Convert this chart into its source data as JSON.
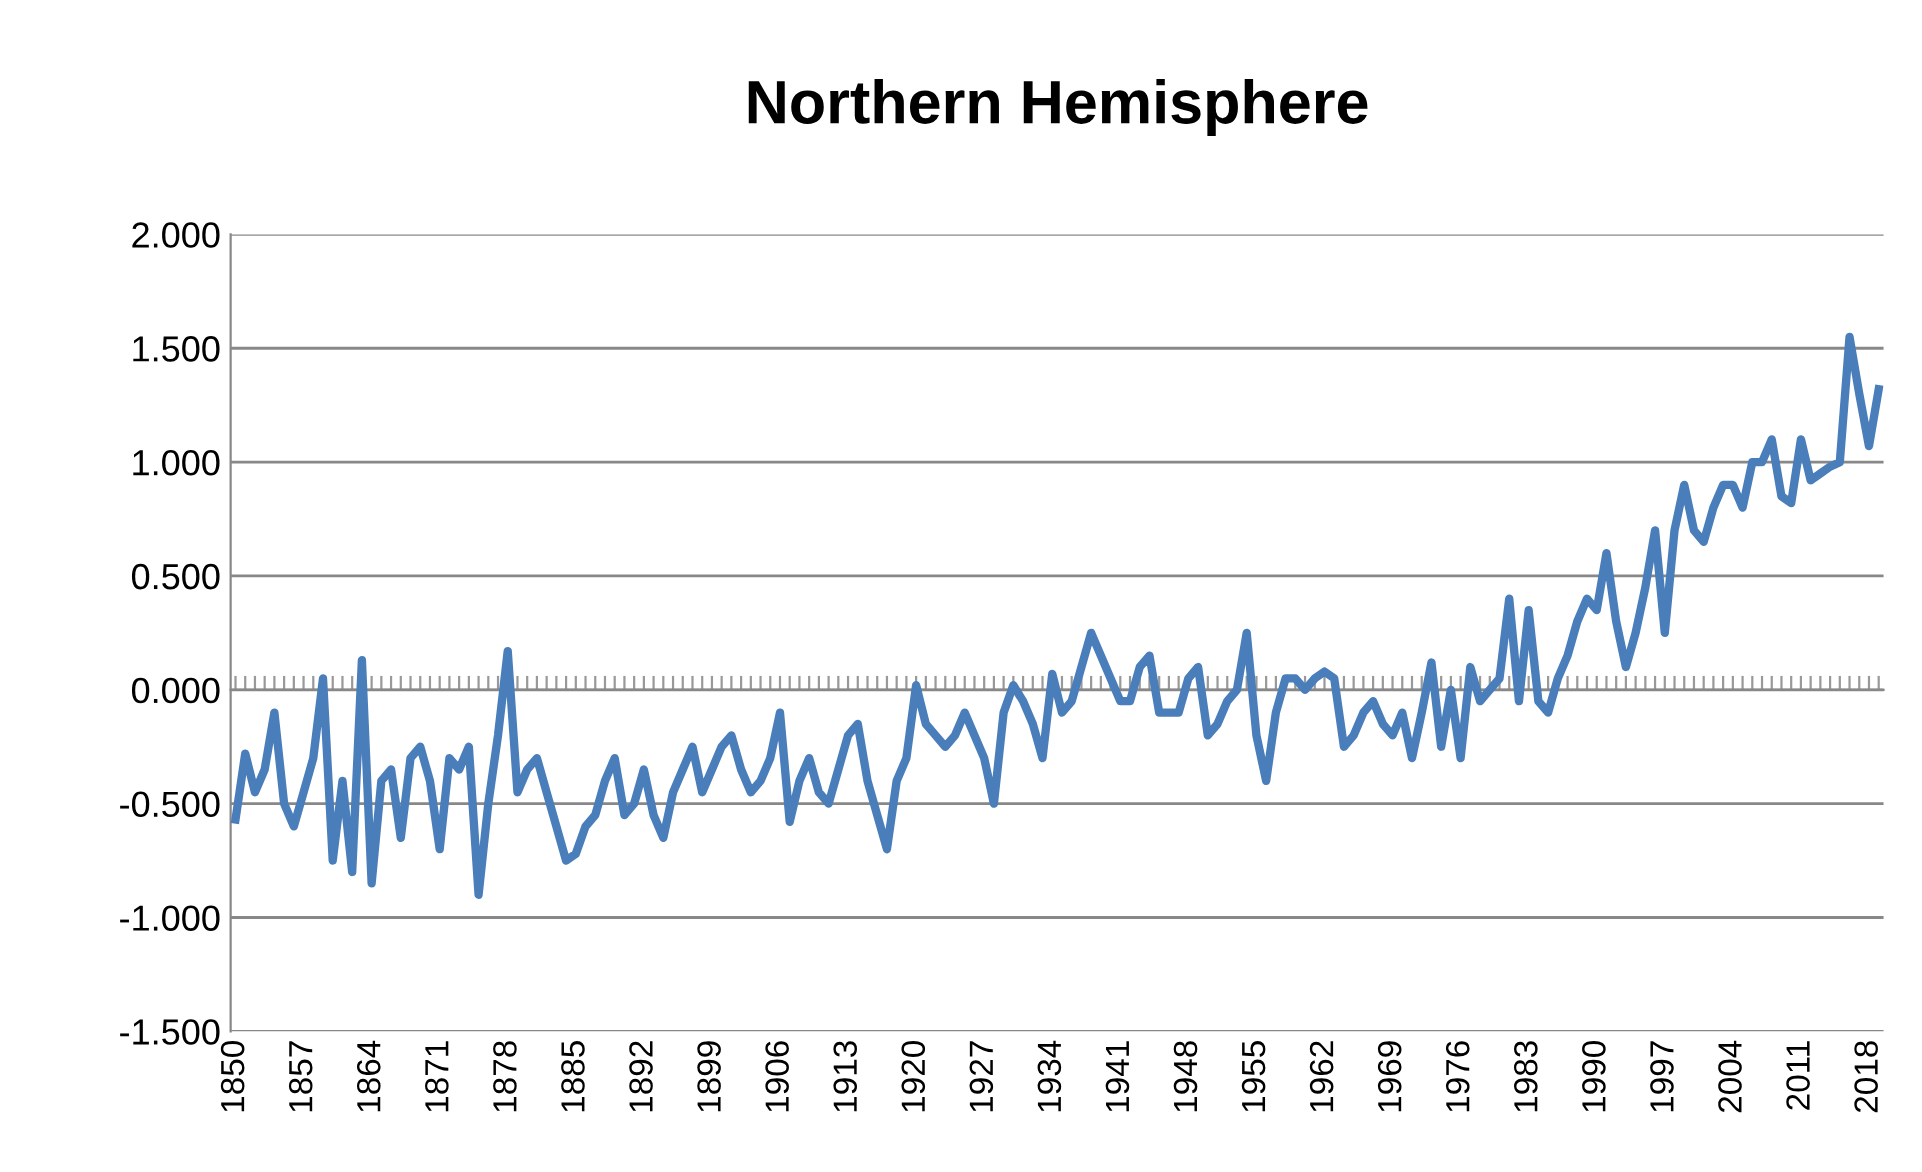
{
  "chart_data": {
    "type": "line",
    "title": "Northern Hemisphere",
    "categories": [
      "1850",
      null,
      null,
      null,
      null,
      null,
      null,
      "1857",
      null,
      null,
      null,
      null,
      null,
      null,
      "1864",
      null,
      null,
      null,
      null,
      null,
      null,
      "1871",
      null,
      null,
      null,
      null,
      null,
      null,
      "1878",
      null,
      null,
      null,
      null,
      null,
      null,
      "1885",
      null,
      null,
      null,
      null,
      null,
      null,
      "1892",
      null,
      null,
      null,
      null,
      null,
      null,
      "1899",
      null,
      null,
      null,
      null,
      null,
      null,
      "1906",
      null,
      null,
      null,
      null,
      null,
      null,
      "1913",
      null,
      null,
      null,
      null,
      null,
      null,
      "1920",
      null,
      null,
      null,
      null,
      null,
      null,
      "1927",
      null,
      null,
      null,
      null,
      null,
      null,
      "1934",
      null,
      null,
      null,
      null,
      null,
      null,
      "1941",
      null,
      null,
      null,
      null,
      null,
      null,
      "1948",
      null,
      null,
      null,
      null,
      null,
      null,
      "1955",
      null,
      null,
      null,
      null,
      null,
      null,
      "1962",
      null,
      null,
      null,
      null,
      null,
      null,
      "1969",
      null,
      null,
      null,
      null,
      null,
      null,
      "1976",
      null,
      null,
      null,
      null,
      null,
      null,
      "1983",
      null,
      null,
      null,
      null,
      null,
      null,
      "1990",
      null,
      null,
      null,
      null,
      null,
      null,
      "1997",
      null,
      null,
      null,
      null,
      null,
      null,
      "2004",
      null,
      null,
      null,
      null,
      null,
      null,
      "2011",
      null,
      null,
      null,
      null,
      null,
      null,
      "2018",
      null
    ],
    "series": [
      {
        "color": "#4a7ebb",
        "values": [
          -0.57,
          -0.28,
          -0.45,
          -0.35,
          -0.1,
          -0.5,
          -0.6,
          -0.45,
          -0.3,
          0.05,
          -0.75,
          -0.4,
          -0.8,
          0.13,
          -0.85,
          -0.4,
          -0.35,
          -0.65,
          -0.3,
          -0.25,
          -0.4,
          -0.7,
          -0.3,
          -0.35,
          -0.25,
          -0.9,
          -0.5,
          -0.2,
          0.17,
          -0.45,
          -0.35,
          -0.3,
          -0.45,
          -0.6,
          -0.75,
          -0.72,
          -0.6,
          -0.55,
          -0.4,
          -0.3,
          -0.55,
          -0.5,
          -0.35,
          -0.55,
          -0.65,
          -0.45,
          -0.35,
          -0.25,
          -0.45,
          -0.35,
          -0.25,
          -0.2,
          -0.35,
          -0.45,
          -0.4,
          -0.3,
          -0.1,
          -0.58,
          -0.4,
          -0.3,
          -0.45,
          -0.5,
          -0.35,
          -0.2,
          -0.15,
          -0.4,
          -0.55,
          -0.7,
          -0.4,
          -0.3,
          0.02,
          -0.15,
          -0.2,
          -0.25,
          -0.2,
          -0.1,
          -0.2,
          -0.3,
          -0.5,
          -0.1,
          0.02,
          -0.05,
          -0.15,
          -0.3,
          0.07,
          -0.1,
          -0.05,
          0.1,
          0.25,
          0.15,
          0.05,
          -0.05,
          -0.05,
          0.1,
          0.15,
          -0.1,
          -0.1,
          -0.1,
          0.05,
          0.1,
          -0.2,
          -0.15,
          -0.05,
          0.0,
          0.25,
          -0.2,
          -0.4,
          -0.1,
          0.05,
          0.05,
          0.0,
          0.05,
          0.08,
          0.05,
          -0.25,
          -0.2,
          -0.1,
          -0.05,
          -0.15,
          -0.2,
          -0.1,
          -0.3,
          -0.1,
          0.12,
          -0.25,
          0.0,
          -0.3,
          0.1,
          -0.05,
          0.0,
          0.05,
          0.4,
          -0.05,
          0.35,
          -0.05,
          -0.1,
          0.05,
          0.15,
          0.3,
          0.4,
          0.35,
          0.6,
          0.3,
          0.1,
          0.25,
          0.45,
          0.7,
          0.25,
          0.7,
          0.9,
          0.7,
          0.65,
          0.8,
          0.9,
          0.9,
          0.8,
          1.0,
          1.0,
          1.1,
          0.85,
          0.82,
          1.1,
          0.92,
          0.95,
          0.98,
          1.0,
          1.55,
          1.3,
          1.07,
          1.32
        ]
      }
    ],
    "ylim": [
      -1.5,
      2
    ],
    "yticks": [
      {
        "value": -1.5,
        "label": "-1.500"
      },
      {
        "value": -1,
        "label": "-1.000"
      },
      {
        "value": -0.5,
        "label": "-0.500"
      },
      {
        "value": 0,
        "label": "0.000"
      },
      {
        "value": 0.5,
        "label": "0.500"
      },
      {
        "value": 1,
        "label": "1.000"
      },
      {
        "value": 1.5,
        "label": "1.500"
      },
      {
        "value": 2,
        "label": "2.000"
      }
    ],
    "grid": "y"
  }
}
